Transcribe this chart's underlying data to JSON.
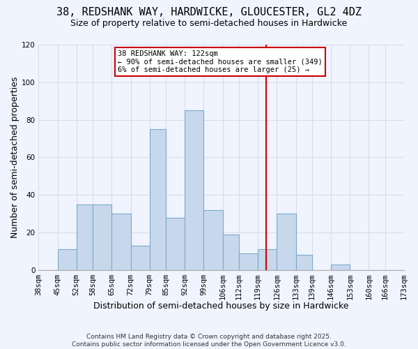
{
  "title": "38, REDSHANK WAY, HARDWICKE, GLOUCESTER, GL2 4DZ",
  "subtitle": "Size of property relative to semi-detached houses in Hardwicke",
  "xlabel": "Distribution of semi-detached houses by size in Hardwicke",
  "ylabel": "Number of semi-detached properties",
  "bin_labels": [
    "38sqm",
    "45sqm",
    "52sqm",
    "58sqm",
    "65sqm",
    "72sqm",
    "79sqm",
    "85sqm",
    "92sqm",
    "99sqm",
    "106sqm",
    "112sqm",
    "119sqm",
    "126sqm",
    "133sqm",
    "139sqm",
    "146sqm",
    "153sqm",
    "160sqm",
    "166sqm",
    "173sqm"
  ],
  "bin_edges": [
    38,
    45,
    52,
    58,
    65,
    72,
    79,
    85,
    92,
    99,
    106,
    112,
    119,
    126,
    133,
    139,
    146,
    153,
    160,
    166,
    173
  ],
  "bar_heights": [
    0,
    11,
    35,
    35,
    30,
    13,
    75,
    28,
    85,
    32,
    19,
    9,
    11,
    30,
    8,
    0,
    3,
    0,
    0,
    0
  ],
  "bar_color": "#c8d8ec",
  "bar_edgecolor": "#7aaac8",
  "vline_x": 122,
  "vline_color": "#cc0000",
  "annotation_title": "38 REDSHANK WAY: 122sqm",
  "annotation_line1": "← 90% of semi-detached houses are smaller (349)",
  "annotation_line2": "6% of semi-detached houses are larger (25) →",
  "annotation_box_edgecolor": "#cc0000",
  "ylim": [
    0,
    120
  ],
  "yticks": [
    0,
    20,
    40,
    60,
    80,
    100,
    120
  ],
  "footer1": "Contains HM Land Registry data © Crown copyright and database right 2025.",
  "footer2": "Contains public sector information licensed under the Open Government Licence v3.0.",
  "background_color": "#f0f4ff",
  "grid_color": "#d8dde8",
  "title_fontsize": 11,
  "subtitle_fontsize": 9,
  "xlabel_fontsize": 9,
  "ylabel_fontsize": 9,
  "tick_fontsize": 7.5,
  "annot_fontsize": 7.5,
  "footer_fontsize": 6.5
}
